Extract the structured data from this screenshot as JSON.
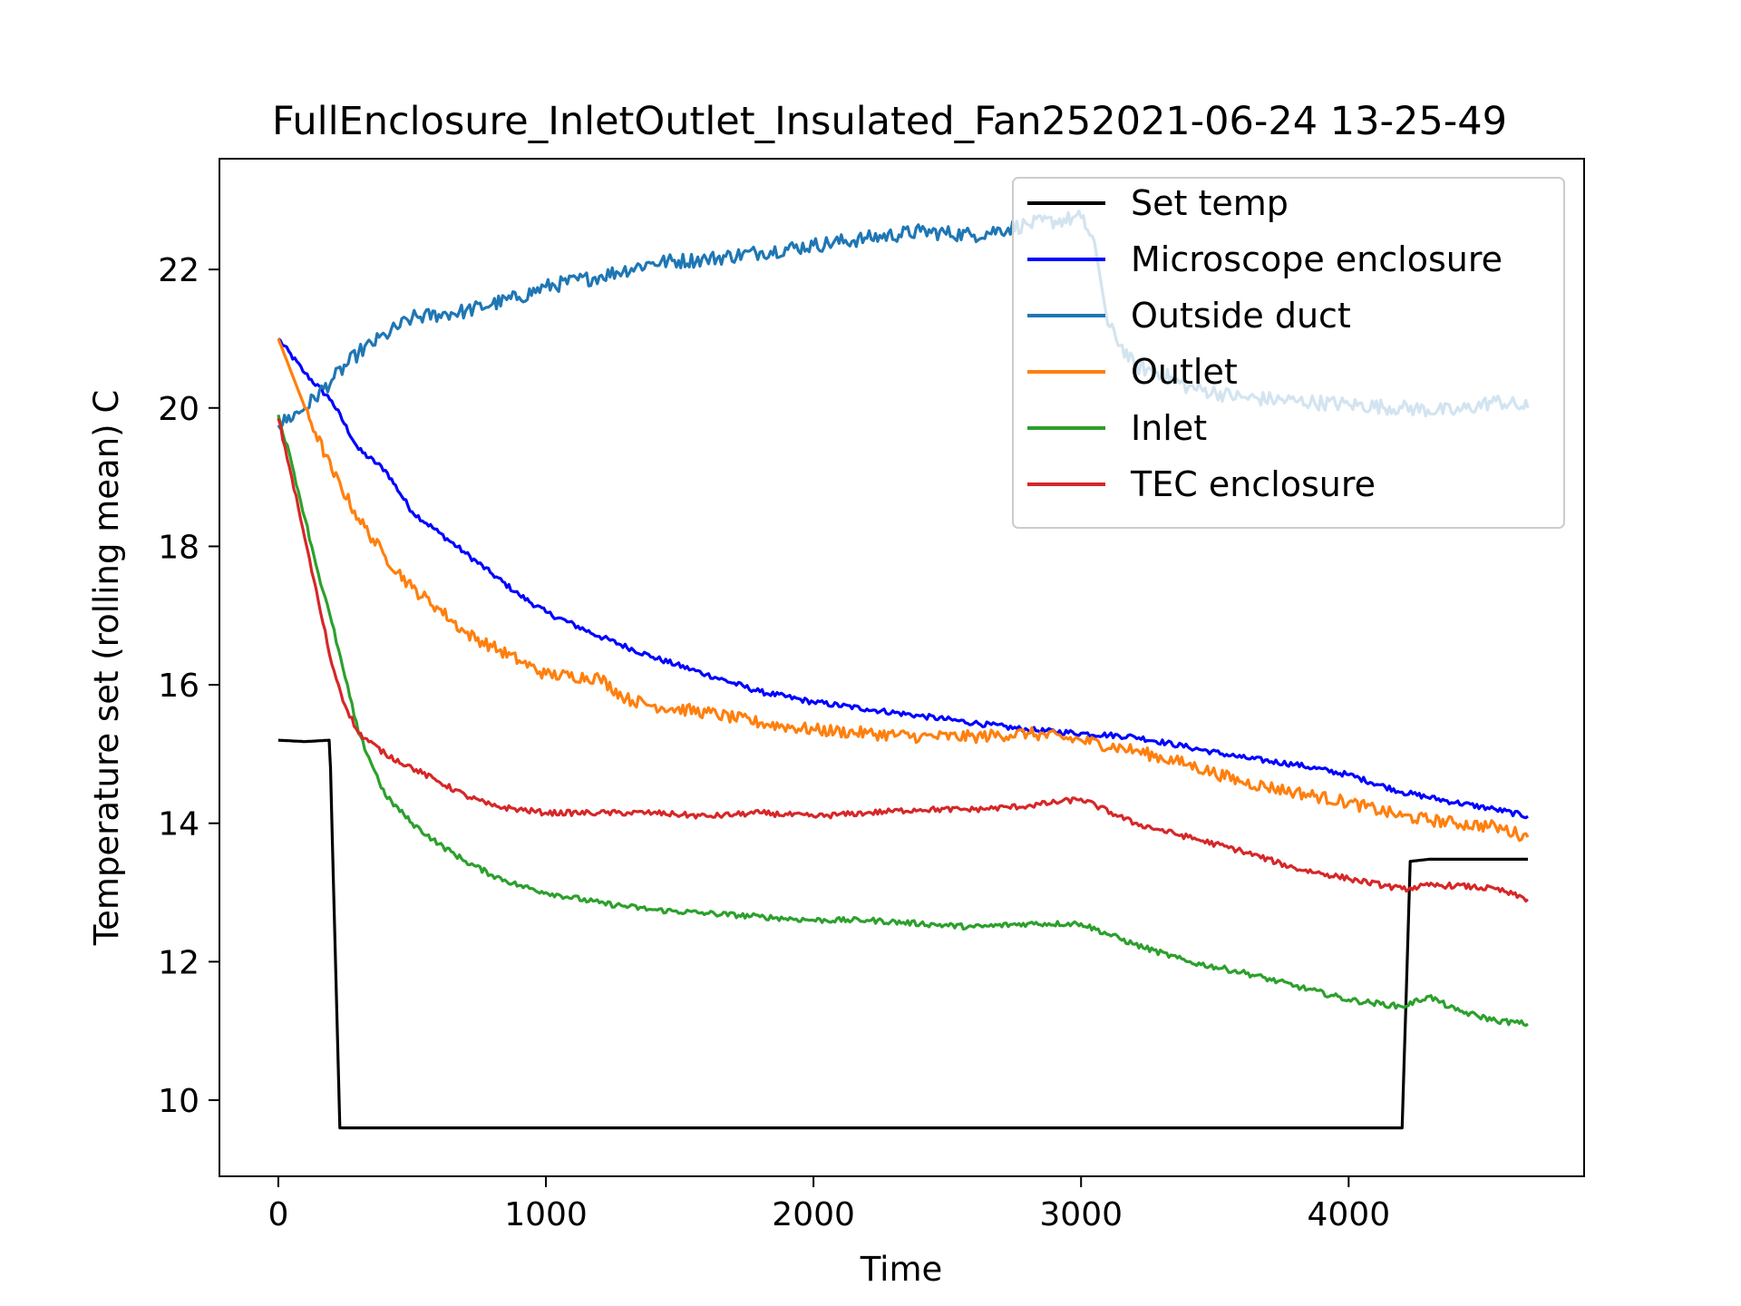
{
  "chart_data": {
    "type": "line",
    "title": "FullEnclosure_InletOutlet_Insulated_Fan252021-06-24 13-25-49",
    "xlabel": "Time",
    "ylabel": "Temperature set (rolling mean) C",
    "xlim": [
      -220,
      4880
    ],
    "ylim": [
      8.9,
      23.6
    ],
    "xticks": [
      0,
      1000,
      2000,
      3000,
      4000
    ],
    "yticks": [
      10,
      12,
      14,
      16,
      18,
      20,
      22
    ],
    "legend": "top-right",
    "grid": false,
    "series": [
      {
        "name": "Set temp",
        "color": "#000000",
        "points": [
          [
            0,
            15.2
          ],
          [
            100,
            15.18
          ],
          [
            190,
            15.2
          ],
          [
            195,
            14.8
          ],
          [
            230,
            9.6
          ],
          [
            500,
            9.6
          ],
          [
            1000,
            9.6
          ],
          [
            2000,
            9.6
          ],
          [
            3000,
            9.6
          ],
          [
            4000,
            9.6
          ],
          [
            4200,
            9.6
          ],
          [
            4230,
            13.45
          ],
          [
            4300,
            13.48
          ],
          [
            4500,
            13.48
          ],
          [
            4670,
            13.48
          ]
        ]
      },
      {
        "name": "Microscope enclosure",
        "color": "#0000ff",
        "points": [
          [
            0,
            21.0
          ],
          [
            100,
            20.5
          ],
          [
            200,
            20.1
          ],
          [
            300,
            19.4
          ],
          [
            400,
            19.1
          ],
          [
            500,
            18.5
          ],
          [
            600,
            18.2
          ],
          [
            700,
            17.9
          ],
          [
            800,
            17.6
          ],
          [
            900,
            17.3
          ],
          [
            1000,
            17.05
          ],
          [
            1200,
            16.7
          ],
          [
            1400,
            16.4
          ],
          [
            1600,
            16.15
          ],
          [
            1800,
            15.9
          ],
          [
            2000,
            15.75
          ],
          [
            2200,
            15.65
          ],
          [
            2400,
            15.55
          ],
          [
            2600,
            15.45
          ],
          [
            2800,
            15.35
          ],
          [
            3000,
            15.3
          ],
          [
            3200,
            15.25
          ],
          [
            3400,
            15.1
          ],
          [
            3600,
            14.95
          ],
          [
            3800,
            14.85
          ],
          [
            4000,
            14.7
          ],
          [
            4200,
            14.45
          ],
          [
            4400,
            14.3
          ],
          [
            4550,
            14.2
          ],
          [
            4670,
            14.1
          ]
        ]
      },
      {
        "name": "Outside duct",
        "color": "#1f77b4",
        "points": [
          [
            0,
            19.75
          ],
          [
            100,
            20.0
          ],
          [
            200,
            20.4
          ],
          [
            300,
            20.8
          ],
          [
            400,
            21.05
          ],
          [
            500,
            21.3
          ],
          [
            600,
            21.35
          ],
          [
            700,
            21.4
          ],
          [
            800,
            21.5
          ],
          [
            900,
            21.6
          ],
          [
            1000,
            21.75
          ],
          [
            1200,
            21.9
          ],
          [
            1400,
            22.1
          ],
          [
            1600,
            22.15
          ],
          [
            1800,
            22.25
          ],
          [
            2000,
            22.35
          ],
          [
            2200,
            22.45
          ],
          [
            2400,
            22.55
          ],
          [
            2600,
            22.5
          ],
          [
            2800,
            22.65
          ],
          [
            3000,
            22.75
          ],
          [
            3050,
            22.4
          ],
          [
            3100,
            21.2
          ],
          [
            3200,
            20.6
          ],
          [
            3300,
            20.5
          ],
          [
            3400,
            20.3
          ],
          [
            3600,
            20.15
          ],
          [
            3800,
            20.1
          ],
          [
            4000,
            20.05
          ],
          [
            4200,
            20.0
          ],
          [
            4400,
            19.95
          ],
          [
            4550,
            20.1
          ],
          [
            4670,
            20.0
          ]
        ]
      },
      {
        "name": "Outlet",
        "color": "#ff7f0e",
        "points": [
          [
            0,
            21.0
          ],
          [
            100,
            20.0
          ],
          [
            200,
            19.1
          ],
          [
            300,
            18.4
          ],
          [
            400,
            17.85
          ],
          [
            500,
            17.4
          ],
          [
            600,
            17.1
          ],
          [
            700,
            16.75
          ],
          [
            800,
            16.55
          ],
          [
            900,
            16.35
          ],
          [
            1000,
            16.15
          ],
          [
            1200,
            16.1
          ],
          [
            1300,
            15.8
          ],
          [
            1400,
            15.7
          ],
          [
            1600,
            15.6
          ],
          [
            1800,
            15.45
          ],
          [
            2000,
            15.35
          ],
          [
            2200,
            15.3
          ],
          [
            2400,
            15.25
          ],
          [
            2600,
            15.25
          ],
          [
            2800,
            15.3
          ],
          [
            3000,
            15.2
          ],
          [
            3200,
            15.05
          ],
          [
            3400,
            14.85
          ],
          [
            3600,
            14.6
          ],
          [
            3800,
            14.45
          ],
          [
            4000,
            14.3
          ],
          [
            4200,
            14.1
          ],
          [
            4400,
            14.0
          ],
          [
            4550,
            13.95
          ],
          [
            4670,
            13.8
          ]
        ]
      },
      {
        "name": "Inlet",
        "color": "#2ca02c",
        "points": [
          [
            0,
            19.9
          ],
          [
            50,
            19.2
          ],
          [
            100,
            18.4
          ],
          [
            150,
            17.6
          ],
          [
            200,
            16.9
          ],
          [
            250,
            16.1
          ],
          [
            300,
            15.3
          ],
          [
            400,
            14.4
          ],
          [
            500,
            14.0
          ],
          [
            600,
            13.7
          ],
          [
            700,
            13.45
          ],
          [
            800,
            13.25
          ],
          [
            900,
            13.1
          ],
          [
            1000,
            13.0
          ],
          [
            1200,
            12.85
          ],
          [
            1400,
            12.75
          ],
          [
            1600,
            12.7
          ],
          [
            1800,
            12.65
          ],
          [
            2000,
            12.6
          ],
          [
            2200,
            12.6
          ],
          [
            2400,
            12.55
          ],
          [
            2600,
            12.5
          ],
          [
            2800,
            12.55
          ],
          [
            3000,
            12.55
          ],
          [
            3200,
            12.25
          ],
          [
            3400,
            12.0
          ],
          [
            3600,
            11.85
          ],
          [
            3800,
            11.65
          ],
          [
            4000,
            11.45
          ],
          [
            4200,
            11.35
          ],
          [
            4300,
            11.5
          ],
          [
            4400,
            11.3
          ],
          [
            4550,
            11.15
          ],
          [
            4670,
            11.1
          ]
        ]
      },
      {
        "name": "TEC enclosure",
        "color": "#d62728",
        "points": [
          [
            0,
            19.85
          ],
          [
            50,
            19.0
          ],
          [
            100,
            18.1
          ],
          [
            150,
            17.2
          ],
          [
            200,
            16.3
          ],
          [
            250,
            15.7
          ],
          [
            300,
            15.3
          ],
          [
            400,
            15.0
          ],
          [
            500,
            14.8
          ],
          [
            600,
            14.6
          ],
          [
            700,
            14.4
          ],
          [
            800,
            14.25
          ],
          [
            900,
            14.2
          ],
          [
            1000,
            14.15
          ],
          [
            1200,
            14.15
          ],
          [
            1400,
            14.15
          ],
          [
            1600,
            14.1
          ],
          [
            1800,
            14.15
          ],
          [
            2000,
            14.1
          ],
          [
            2200,
            14.15
          ],
          [
            2400,
            14.2
          ],
          [
            2600,
            14.2
          ],
          [
            2800,
            14.25
          ],
          [
            3000,
            14.35
          ],
          [
            3200,
            14.0
          ],
          [
            3400,
            13.8
          ],
          [
            3600,
            13.6
          ],
          [
            3800,
            13.35
          ],
          [
            4000,
            13.2
          ],
          [
            4200,
            13.05
          ],
          [
            4300,
            13.1
          ],
          [
            4400,
            13.1
          ],
          [
            4550,
            13.05
          ],
          [
            4670,
            12.9
          ]
        ]
      }
    ]
  }
}
